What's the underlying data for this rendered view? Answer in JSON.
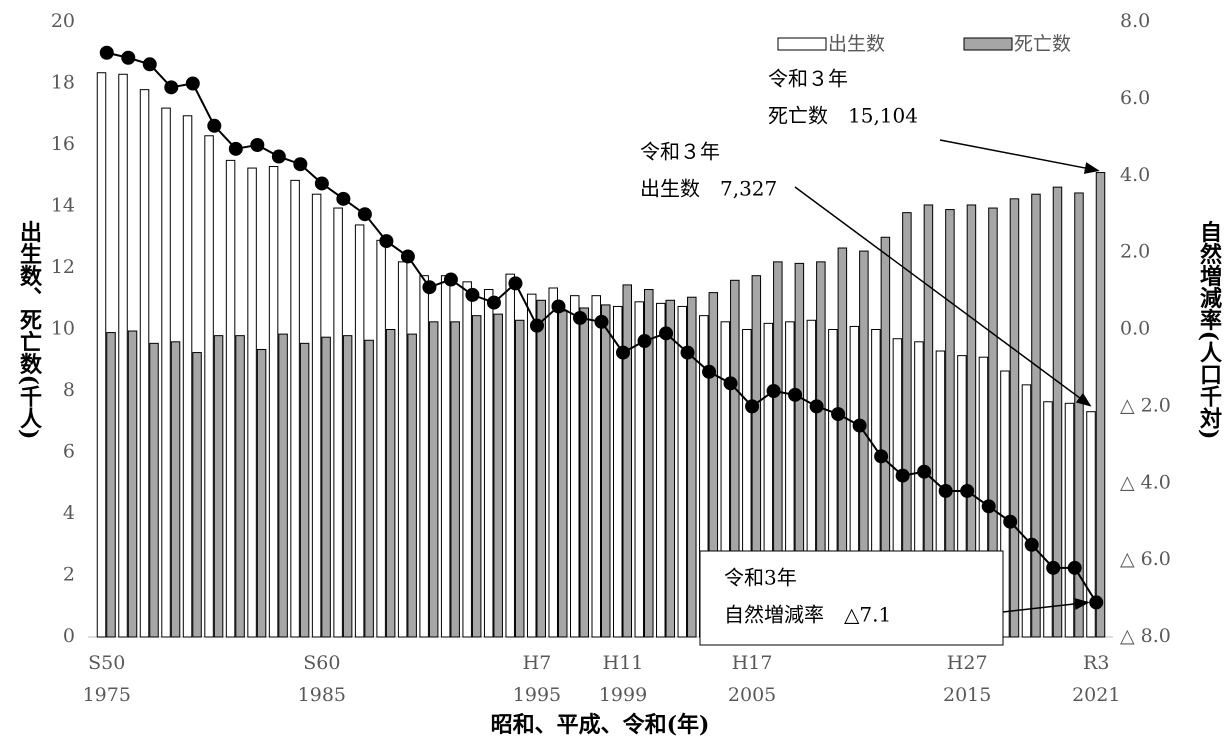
{
  "chart_data": {
    "type": "bar",
    "x_label": "昭和、平成、令和(年)",
    "y_label": "出生数、死亡数(千人)",
    "y2_label": "自然増減率(人口千対)",
    "categories": [
      "S50",
      null,
      null,
      null,
      null,
      null,
      null,
      null,
      null,
      null,
      "S60",
      null,
      null,
      null,
      null,
      null,
      null,
      null,
      null,
      null,
      "H7",
      null,
      null,
      null,
      "H11",
      null,
      null,
      null,
      null,
      null,
      "H17",
      null,
      null,
      null,
      null,
      null,
      null,
      null,
      null,
      null,
      "H27",
      null,
      null,
      null,
      null,
      null,
      "R3"
    ],
    "category_years": [
      "1975",
      null,
      null,
      null,
      null,
      null,
      null,
      null,
      null,
      null,
      "1985",
      null,
      null,
      null,
      null,
      null,
      null,
      null,
      null,
      null,
      "1995",
      null,
      null,
      null,
      "1999",
      null,
      null,
      null,
      null,
      null,
      "2005",
      null,
      null,
      null,
      null,
      null,
      null,
      null,
      null,
      null,
      "2015",
      null,
      null,
      null,
      null,
      null,
      "2021"
    ],
    "series": [
      {
        "name": "出生数",
        "type": "bar",
        "color": "#ffffff",
        "values": [
          18.35,
          18.3,
          17.8,
          17.2,
          16.95,
          16.3,
          15.5,
          15.25,
          15.3,
          14.85,
          14.4,
          13.95,
          13.4,
          12.9,
          12.2,
          11.75,
          11.75,
          11.55,
          11.3,
          11.8,
          11.15,
          11.35,
          11.1,
          11.1,
          10.75,
          10.9,
          10.85,
          10.75,
          10.45,
          10.25,
          10.0,
          10.2,
          10.25,
          10.3,
          10.0,
          10.1,
          10.0,
          9.7,
          9.6,
          9.3,
          9.15,
          9.1,
          8.65,
          8.2,
          7.65,
          7.6,
          7.327
        ]
      },
      {
        "name": "死亡数",
        "type": "bar",
        "color": "#a6a6a6",
        "values": [
          9.9,
          9.95,
          9.55,
          9.6,
          9.25,
          9.8,
          9.8,
          9.35,
          9.85,
          9.55,
          9.75,
          9.8,
          9.65,
          10.0,
          9.85,
          10.25,
          10.25,
          10.45,
          10.5,
          10.3,
          10.95,
          10.6,
          10.7,
          10.8,
          11.45,
          11.3,
          10.95,
          11.05,
          11.2,
          11.6,
          11.75,
          12.2,
          12.15,
          12.2,
          12.65,
          12.55,
          13.0,
          13.8,
          14.05,
          13.9,
          14.05,
          13.95,
          14.25,
          14.4,
          14.63,
          14.44,
          15.104
        ]
      },
      {
        "type": "line",
        "axis": "y2",
        "color": "#000000",
        "values": [
          7.2,
          7.07,
          6.9,
          6.3,
          6.4,
          5.3,
          4.7,
          4.8,
          4.5,
          4.3,
          3.8,
          3.4,
          3.0,
          2.3,
          1.9,
          1.1,
          1.3,
          0.9,
          0.7,
          1.2,
          0.1,
          0.6,
          0.3,
          0.2,
          -0.6,
          -0.3,
          -0.1,
          -0.6,
          -1.1,
          -1.4,
          -2.0,
          -1.6,
          -1.7,
          -2.0,
          -2.2,
          -2.5,
          -3.3,
          -3.8,
          -3.7,
          -4.2,
          -4.2,
          -4.6,
          -5.0,
          -5.6,
          -6.2,
          -6.2,
          -7.1
        ]
      }
    ],
    "ylim": [
      0,
      20
    ],
    "yticks": [
      0,
      2,
      4,
      6,
      8,
      10,
      12,
      14,
      16,
      18,
      20
    ],
    "y2lim": [
      -8,
      8
    ],
    "y2ticks": [
      {
        "value": 8,
        "label": "8.0"
      },
      {
        "value": 6,
        "label": "6.0"
      },
      {
        "value": 4,
        "label": "4.0"
      },
      {
        "value": 2,
        "label": "2.0"
      },
      {
        "value": 0,
        "label": "0.0"
      },
      {
        "value": -2,
        "label": "△ 2.0"
      },
      {
        "value": -4,
        "label": "△ 4.0"
      },
      {
        "value": -6,
        "label": "△ 6.0"
      },
      {
        "value": -8,
        "label": "△ 8.0"
      }
    ],
    "legend": "top-right",
    "annotations": [
      {
        "lines": [
          "令和３年",
          "死亡数　15,104"
        ]
      },
      {
        "lines": [
          "令和３年",
          "出生数　7,327"
        ]
      },
      {
        "lines": [
          "令和3年",
          "自然増減率　△7.1"
        ]
      }
    ]
  }
}
